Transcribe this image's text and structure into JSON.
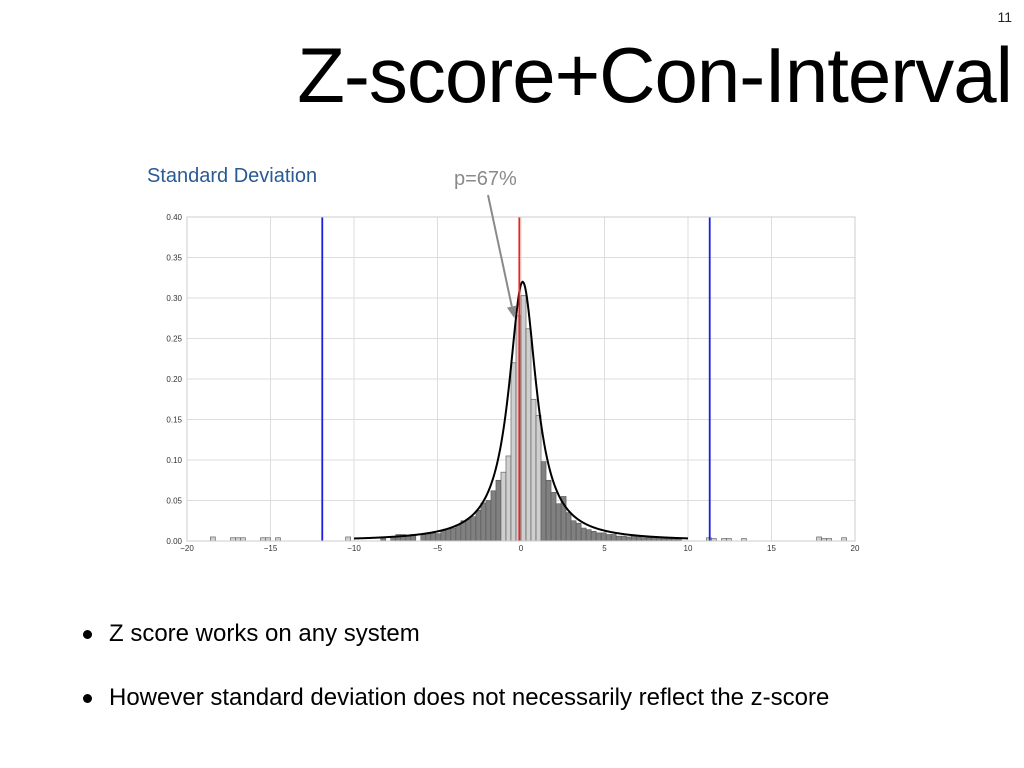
{
  "slide": {
    "number": "11",
    "title": "Z-score+Con-Interval",
    "subtitle": "Standard Deviation",
    "bullets": [
      "Z score works on any system",
      "However standard deviation does not necessarily reflect the z-score"
    ]
  },
  "chart_data": {
    "type": "bar",
    "title": "",
    "xlabel": "",
    "ylabel": "",
    "xlim": [
      -20,
      20
    ],
    "ylim": [
      0,
      0.4
    ],
    "grid": true,
    "xticks": [
      -20,
      -15,
      -10,
      -5,
      0,
      5,
      10,
      15,
      20
    ],
    "yticks": [
      0.0,
      0.05,
      0.1,
      0.15,
      0.2,
      0.25,
      0.3,
      0.35,
      0.4
    ],
    "xtick_labels": [
      "−20",
      "−15",
      "−10",
      "−5",
      "0",
      "5",
      "10",
      "15",
      "20"
    ],
    "ytick_labels": [
      "0.00",
      "0.05",
      "0.10",
      "0.15",
      "0.20",
      "0.25",
      "0.30",
      "0.35",
      "0.40"
    ],
    "histogram": {
      "bin_width": 0.3,
      "bin_start": [
        -18.6,
        -17.4,
        -17.1,
        -16.8,
        -15.6,
        -15.3,
        -14.7,
        -10.5,
        -8.4,
        -7.8,
        -7.5,
        -7.2,
        -6.9,
        -6.6,
        -6.0,
        -5.7,
        -5.4,
        -5.1,
        -4.8,
        -4.5,
        -4.2,
        -3.9,
        -3.6,
        -3.3,
        -3.0,
        -2.7,
        -2.4,
        -2.1,
        -1.8,
        -1.5,
        -1.2,
        -0.9,
        -0.6,
        -0.3,
        0.0,
        0.3,
        0.6,
        0.9,
        1.2,
        1.5,
        1.8,
        2.1,
        2.4,
        2.7,
        3.0,
        3.3,
        3.6,
        3.9,
        4.2,
        4.5,
        4.8,
        5.1,
        5.4,
        5.7,
        6.0,
        6.3,
        6.6,
        6.9,
        7.2,
        7.5,
        7.8,
        8.1,
        8.4,
        8.7,
        9.0,
        9.3,
        11.1,
        11.4,
        12.0,
        12.3,
        13.2,
        17.7,
        18.0,
        18.3,
        19.2
      ],
      "values": [
        0.005,
        0.004,
        0.004,
        0.004,
        0.004,
        0.004,
        0.004,
        0.005,
        0.003,
        0.005,
        0.008,
        0.008,
        0.006,
        0.008,
        0.008,
        0.009,
        0.01,
        0.009,
        0.013,
        0.015,
        0.016,
        0.02,
        0.025,
        0.027,
        0.03,
        0.038,
        0.047,
        0.05,
        0.062,
        0.075,
        0.085,
        0.105,
        0.22,
        0.278,
        0.303,
        0.262,
        0.175,
        0.155,
        0.098,
        0.075,
        0.06,
        0.046,
        0.055,
        0.035,
        0.025,
        0.022,
        0.016,
        0.014,
        0.012,
        0.01,
        0.01,
        0.008,
        0.008,
        0.006,
        0.006,
        0.005,
        0.006,
        0.005,
        0.004,
        0.004,
        0.004,
        0.004,
        0.003,
        0.003,
        0.003,
        0.003,
        0.004,
        0.003,
        0.003,
        0.003,
        0.003,
        0.005,
        0.003,
        0.003,
        0.004
      ],
      "dark_fill": "#808080",
      "light_fill": "#cfcfcf",
      "outline": "#555555",
      "light_region": [
        -1.2,
        1.2
      ]
    },
    "fit_curve": {
      "type": "cauchy",
      "location": 0.1,
      "peak": 0.32,
      "scale": 1.0,
      "x_range": [
        -10,
        10
      ],
      "color": "#000000"
    },
    "vertical_lines": [
      {
        "x": -11.9,
        "color": "#1d1de0"
      },
      {
        "x": 11.3,
        "color": "#1d1de0"
      },
      {
        "x": -0.1,
        "color": "#ee2222"
      }
    ],
    "annotation": {
      "text": "p=67%",
      "color": "#8a8a8a",
      "target_x": -0.4,
      "target_y": 0.275
    }
  }
}
